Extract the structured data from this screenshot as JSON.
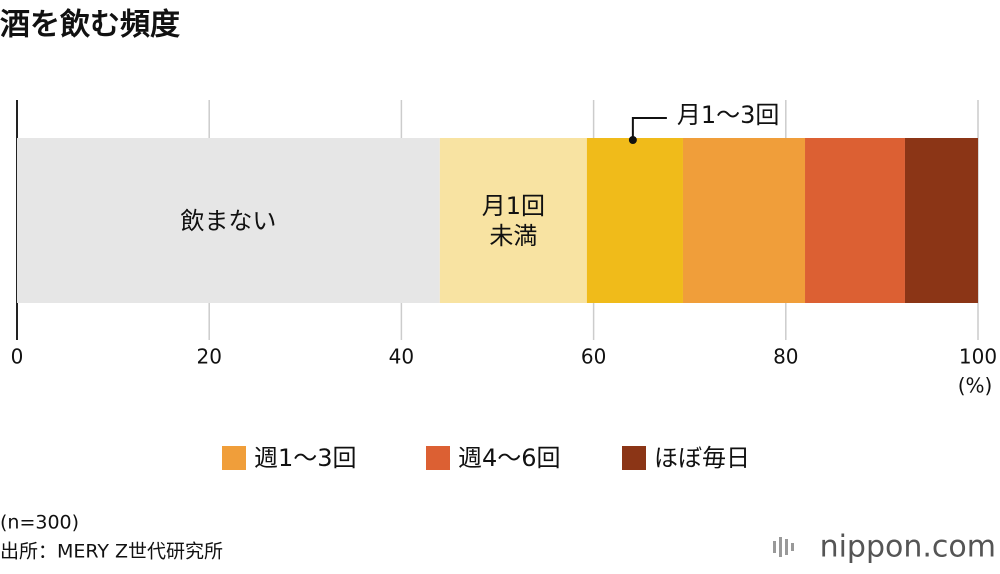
{
  "chart_data": {
    "type": "stacked-bar",
    "title": "酒を飲む頻度",
    "series": [
      {
        "name": "飲まない",
        "color": "#e6e6e6",
        "values": [
          44
        ]
      },
      {
        "name": "月1回未満",
        "color": "#f8e3a2",
        "values": [
          15.3
        ]
      },
      {
        "name": "月1〜3回",
        "color": "#f0bb1a",
        "values": [
          10
        ]
      },
      {
        "name": "週1〜3回",
        "color": "#f09e3a",
        "values": [
          12.7
        ]
      },
      {
        "name": "週4〜6回",
        "color": "#dc6033",
        "values": [
          10.4
        ]
      },
      {
        "name": "ほぼ毎日",
        "color": "#8b3516",
        "values": [
          7.6
        ]
      }
    ],
    "xlim": [
      0,
      100
    ],
    "xticks": [
      0,
      20,
      40,
      60,
      80,
      100
    ],
    "xlabel": "(%)",
    "grid": true
  },
  "notes": [
    "(n=300)",
    "出所：MERY Z世代研究所"
  ],
  "logo": "nippon.com"
}
